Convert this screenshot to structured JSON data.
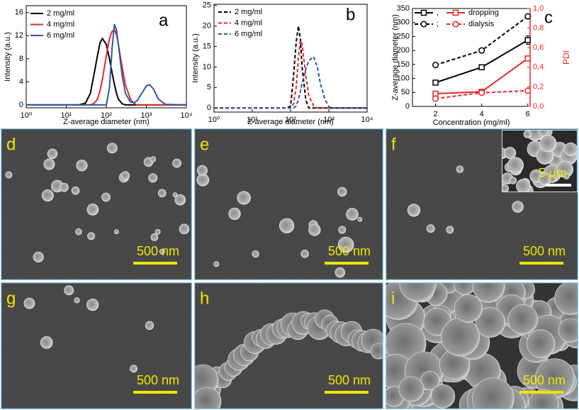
{
  "chart_data": [
    {
      "type": "line",
      "label": "a",
      "xscale": "log",
      "xlabel": "Z-average diameter (nm)",
      "ylabel": "Intensity (a.u.)",
      "xlim": [
        1,
        10000
      ],
      "xticks": [
        {
          "value": 1,
          "label": "10⁰"
        },
        {
          "value": 10,
          "label": "10¹"
        },
        {
          "value": 100,
          "label": "10²"
        },
        {
          "value": 1000,
          "label": "10³"
        },
        {
          "value": 10000,
          "label": "10⁴"
        }
      ],
      "ylim": [
        -0.5,
        17.2
      ],
      "yticks": [
        0,
        4,
        8,
        12,
        16
      ],
      "legend": "upper left",
      "x": [
        1,
        20,
        30,
        40,
        50,
        60,
        70,
        80,
        100,
        120,
        140,
        160,
        180,
        200,
        250,
        300,
        400,
        500,
        600,
        800,
        1000,
        1200,
        1500,
        2000,
        3000,
        10000
      ],
      "series": [
        {
          "name": "2 mg/ml",
          "color": "#000000",
          "dash": false,
          "values": [
            0,
            0,
            0.3,
            2,
            5.5,
            8.5,
            10.8,
            11.5,
            10.5,
            8,
            5.5,
            3.5,
            2,
            1,
            0.2,
            0,
            0,
            0,
            0,
            0,
            0,
            0,
            0,
            0,
            0,
            0
          ]
        },
        {
          "name": "4 mg/ml",
          "color": "#e8262a",
          "dash": false,
          "values": [
            0,
            0,
            0,
            0,
            0.3,
            1,
            2.5,
            4.5,
            8.5,
            11.5,
            12.8,
            13,
            12.2,
            10.5,
            6.5,
            3.5,
            1,
            0.2,
            0,
            0,
            0,
            0,
            0,
            0,
            0,
            0
          ]
        },
        {
          "name": "6 mg/ml",
          "color": "#2e58a6",
          "dash": false,
          "values": [
            0,
            0,
            0,
            0,
            0,
            0,
            0,
            0,
            0,
            3,
            10,
            14,
            13,
            10.5,
            5,
            2,
            0.5,
            0.4,
            0.8,
            2.2,
            3.3,
            3.5,
            2.8,
            1,
            0.1,
            0
          ]
        }
      ]
    },
    {
      "type": "line",
      "label": "b",
      "xscale": "log",
      "xlabel": "Z-average diameter (nm)",
      "ylabel": "Intensity (a.u.)",
      "xlim": [
        1,
        10000
      ],
      "xticks": [
        {
          "value": 1,
          "label": "10⁰"
        },
        {
          "value": 10,
          "label": "10¹"
        },
        {
          "value": 100,
          "label": "10²"
        },
        {
          "value": 1000,
          "label": "10³"
        },
        {
          "value": 10000,
          "label": "10⁴"
        }
      ],
      "ylim": [
        -1,
        25.3
      ],
      "yticks": [
        0,
        5,
        10,
        15,
        20,
        25
      ],
      "legend": "upper left",
      "x": [
        1,
        80,
        100,
        120,
        140,
        160,
        180,
        200,
        250,
        300,
        400,
        500,
        600,
        800,
        1000,
        1200,
        10000
      ],
      "series": [
        {
          "name": "2 mg/ml",
          "color": "#000000",
          "dash": true,
          "values": [
            0,
            0,
            0.5,
            8,
            16,
            20,
            17,
            10,
            2,
            0,
            0,
            0,
            0,
            0,
            0,
            0,
            0
          ]
        },
        {
          "name": "4 mg/ml",
          "color": "#e8262a",
          "dash": true,
          "values": [
            0,
            0,
            0,
            1,
            5,
            12,
            16.5,
            15.5,
            8,
            3,
            0.5,
            0,
            0,
            0,
            0,
            0,
            0
          ]
        },
        {
          "name": "6 mg/ml",
          "color": "#2e58a6",
          "dash": true,
          "values": [
            0,
            0,
            0,
            0,
            0.5,
            2,
            4,
            6,
            9.5,
            11.5,
            12.5,
            10,
            6,
            2,
            0.3,
            0,
            0
          ]
        }
      ]
    },
    {
      "type": "line",
      "label": "c",
      "xlabel": "Concentration (mg/ml)",
      "ylabel": "Z-average diameter (nm)",
      "y2label": "PDI",
      "y2color": "#e8262a",
      "xlim": [
        1,
        6.1
      ],
      "xticks": [
        2,
        4,
        6
      ],
      "ylim": [
        0,
        350
      ],
      "yticks": [
        0,
        50,
        100,
        150,
        200,
        250,
        300,
        350
      ],
      "y2lim": [
        0,
        1.0
      ],
      "y2ticks": [
        {
          "value": 0,
          "label": "0,0"
        },
        {
          "value": 0.2,
          "label": "0,2"
        },
        {
          "value": 0.4,
          "label": "0,4"
        },
        {
          "value": 0.6,
          "label": "0,6"
        },
        {
          "value": 0.8,
          "label": "0,8"
        },
        {
          "value": 1.0,
          "label": "1,0"
        }
      ],
      "legend": "upper left",
      "x": [
        2,
        4,
        6
      ],
      "series": [
        {
          "name": ",",
          "color": "#000000",
          "dash": false,
          "marker": "square",
          "values": [
            85,
            140,
            237
          ],
          "errors": [
            4,
            5,
            15
          ]
        },
        {
          "name": ";",
          "color": "#000000",
          "dash": true,
          "marker": "circle",
          "values": [
            148,
            200,
            322
          ]
        },
        {
          "name": "dropping",
          "color": "#e8262a",
          "dash": false,
          "marker": "square",
          "axis": "y2",
          "values": [
            0.13,
            0.15,
            0.49
          ]
        },
        {
          "name": "dialysis",
          "color": "#e8262a",
          "dash": true,
          "marker": "circle",
          "axis": "y2",
          "values": [
            0.08,
            0.14,
            0.16
          ]
        }
      ]
    }
  ],
  "panels": [
    {
      "label": "d",
      "scale": "500 nm"
    },
    {
      "label": "e",
      "scale": "500 nm"
    },
    {
      "label": "f",
      "scale": "500 nm"
    },
    {
      "label": "g",
      "scale": "500 nm"
    },
    {
      "label": "h",
      "scale": "500 nm"
    },
    {
      "label": "i",
      "scale": "500 nm"
    }
  ],
  "inset": {
    "scale": "5 µm"
  }
}
